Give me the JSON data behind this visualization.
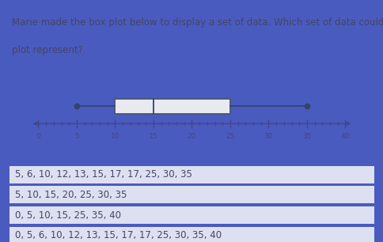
{
  "title_line1": "Marie made the box plot below to display a set of data. Which set of data could the box",
  "title_line2": "plot represent?",
  "title_fontsize": 8.5,
  "title_color": "#444466",
  "bg_color_title": "#c8cce0",
  "bg_color_plot": "#b8c0d8",
  "bg_color_options": "#4a5bbf",
  "option_bg": "#dde0f0",
  "option_text_color": "#444466",
  "option_fontsize": 8.5,
  "options": [
    "5, 6, 10, 12, 13, 15, 17, 17, 25, 30, 35",
    "5, 10, 15, 20, 25, 30, 35",
    "0, 5, 10, 15, 25, 35, 40",
    "0, 5, 6, 10, 12, 13, 15, 17, 17, 25, 30, 35, 40"
  ],
  "boxplot_min": 5,
  "boxplot_q1": 10,
  "boxplot_median": 15,
  "boxplot_q3": 25,
  "boxplot_max": 35,
  "axis_min": 0,
  "axis_max": 40,
  "axis_ticks": [
    0,
    5,
    10,
    15,
    20,
    25,
    30,
    35,
    40
  ],
  "number_line_color": "#444488",
  "whisker_color": "#334466",
  "dot_color": "#334466",
  "box_edge_color": "#445577",
  "box_face_color": "#e8eaf0"
}
